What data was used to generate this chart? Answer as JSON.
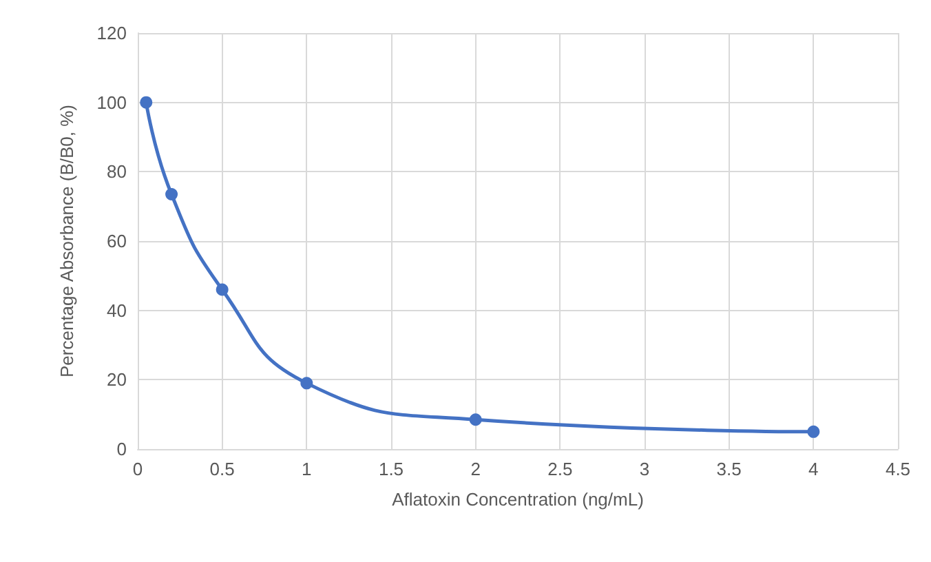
{
  "chart_data": {
    "type": "line",
    "xlabel": "Aflatoxin Concentration (ng/mL)",
    "ylabel": "Percentage Absorbance (B/B0, %)",
    "x": [
      0.05,
      0.2,
      0.5,
      1,
      2,
      4
    ],
    "series": [
      {
        "color": "#4472c4",
        "values": [
          100,
          73.5,
          46,
          19,
          8.5,
          5
        ]
      }
    ],
    "xlim": [
      0,
      4.5
    ],
    "xticks": [
      0,
      0.5,
      1,
      1.5,
      2,
      2.5,
      3,
      3.5,
      4,
      4.5
    ],
    "ylim": [
      0,
      120
    ],
    "yticks": [
      0,
      20,
      40,
      60,
      80,
      100,
      120
    ],
    "grid": true,
    "marker": "circle",
    "line_style": "solid"
  }
}
